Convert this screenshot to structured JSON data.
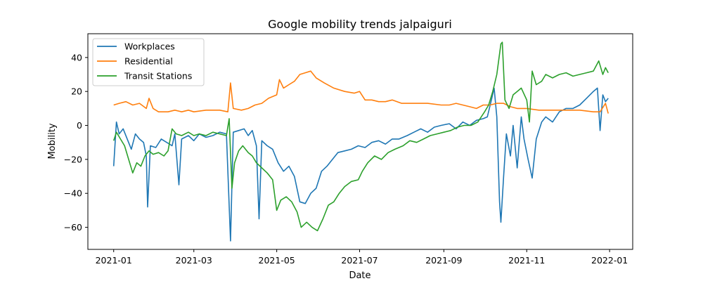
{
  "chart_data": {
    "type": "line",
    "title": "Google mobility trends jalpaiguri",
    "xlabel": "Date",
    "ylabel": "Mobility",
    "xlim": [
      "2020-12-13",
      "2022-01-18"
    ],
    "ylim": [
      -73,
      54
    ],
    "x_ticks": [
      "2021-01",
      "2021-03",
      "2021-05",
      "2021-07",
      "2021-09",
      "2021-11",
      "2022-01"
    ],
    "y_ticks": [
      -60,
      -40,
      -20,
      0,
      20,
      40
    ],
    "grid": false,
    "legend_position": "upper-left",
    "series": [
      {
        "name": "Workplaces",
        "color": "#1f77b4",
        "points": [
          [
            "2021-01-01",
            -24
          ],
          [
            "2021-01-03",
            2
          ],
          [
            "2021-01-05",
            -5
          ],
          [
            "2021-01-08",
            -2
          ],
          [
            "2021-01-11",
            -8
          ],
          [
            "2021-01-14",
            -14
          ],
          [
            "2021-01-17",
            -5
          ],
          [
            "2021-01-20",
            -8
          ],
          [
            "2021-01-23",
            -10
          ],
          [
            "2021-01-25",
            -18
          ],
          [
            "2021-01-26",
            -48
          ],
          [
            "2021-01-28",
            -12
          ],
          [
            "2021-02-01",
            -13
          ],
          [
            "2021-02-05",
            -8
          ],
          [
            "2021-02-09",
            -10
          ],
          [
            "2021-02-13",
            -12
          ],
          [
            "2021-02-15",
            -5
          ],
          [
            "2021-02-18",
            -35
          ],
          [
            "2021-02-20",
            -8
          ],
          [
            "2021-02-25",
            -6
          ],
          [
            "2021-03-01",
            -9
          ],
          [
            "2021-03-05",
            -5
          ],
          [
            "2021-03-10",
            -7
          ],
          [
            "2021-03-15",
            -6
          ],
          [
            "2021-03-20",
            -4
          ],
          [
            "2021-03-25",
            -5
          ],
          [
            "2021-03-28",
            -68
          ],
          [
            "2021-03-30",
            -4
          ],
          [
            "2021-04-03",
            -3
          ],
          [
            "2021-04-07",
            -2
          ],
          [
            "2021-04-10",
            -6
          ],
          [
            "2021-04-13",
            -3
          ],
          [
            "2021-04-16",
            -12
          ],
          [
            "2021-04-18",
            -55
          ],
          [
            "2021-04-20",
            -9
          ],
          [
            "2021-04-24",
            -12
          ],
          [
            "2021-04-28",
            -14
          ],
          [
            "2021-05-02",
            -22
          ],
          [
            "2021-05-06",
            -27
          ],
          [
            "2021-05-10",
            -24
          ],
          [
            "2021-05-14",
            -30
          ],
          [
            "2021-05-18",
            -45
          ],
          [
            "2021-05-22",
            -46
          ],
          [
            "2021-05-26",
            -40
          ],
          [
            "2021-05-30",
            -37
          ],
          [
            "2021-06-03",
            -27
          ],
          [
            "2021-06-07",
            -24
          ],
          [
            "2021-06-11",
            -20
          ],
          [
            "2021-06-15",
            -16
          ],
          [
            "2021-06-20",
            -15
          ],
          [
            "2021-06-25",
            -14
          ],
          [
            "2021-06-30",
            -12
          ],
          [
            "2021-07-05",
            -13
          ],
          [
            "2021-07-10",
            -10
          ],
          [
            "2021-07-15",
            -9
          ],
          [
            "2021-07-20",
            -11
          ],
          [
            "2021-07-25",
            -8
          ],
          [
            "2021-07-30",
            -8
          ],
          [
            "2021-08-05",
            -6
          ],
          [
            "2021-08-10",
            -4
          ],
          [
            "2021-08-15",
            -2
          ],
          [
            "2021-08-20",
            -4
          ],
          [
            "2021-08-25",
            -1
          ],
          [
            "2021-08-30",
            0
          ],
          [
            "2021-09-05",
            1
          ],
          [
            "2021-09-10",
            -2
          ],
          [
            "2021-09-15",
            2
          ],
          [
            "2021-09-20",
            0
          ],
          [
            "2021-09-25",
            3
          ],
          [
            "2021-09-30",
            4
          ],
          [
            "2021-10-03",
            5
          ],
          [
            "2021-10-06",
            15
          ],
          [
            "2021-10-08",
            22
          ],
          [
            "2021-10-10",
            5
          ],
          [
            "2021-10-12",
            -45
          ],
          [
            "2021-10-13",
            -57
          ],
          [
            "2021-10-15",
            -30
          ],
          [
            "2021-10-17",
            -5
          ],
          [
            "2021-10-20",
            -18
          ],
          [
            "2021-10-22",
            0
          ],
          [
            "2021-10-25",
            -25
          ],
          [
            "2021-10-28",
            5
          ],
          [
            "2021-10-30",
            -8
          ],
          [
            "2021-11-02",
            -20
          ],
          [
            "2021-11-05",
            -31
          ],
          [
            "2021-11-08",
            -8
          ],
          [
            "2021-11-12",
            2
          ],
          [
            "2021-11-15",
            5
          ],
          [
            "2021-11-20",
            2
          ],
          [
            "2021-11-25",
            8
          ],
          [
            "2021-11-30",
            10
          ],
          [
            "2021-12-05",
            10
          ],
          [
            "2021-12-10",
            12
          ],
          [
            "2021-12-15",
            16
          ],
          [
            "2021-12-20",
            20
          ],
          [
            "2021-12-23",
            22
          ],
          [
            "2021-12-25",
            -3
          ],
          [
            "2021-12-27",
            18
          ],
          [
            "2021-12-29",
            14
          ],
          [
            "2021-12-31",
            16
          ]
        ]
      },
      {
        "name": "Residential",
        "color": "#ff7f0e",
        "points": [
          [
            "2021-01-01",
            12
          ],
          [
            "2021-01-05",
            13
          ],
          [
            "2021-01-10",
            14
          ],
          [
            "2021-01-15",
            12
          ],
          [
            "2021-01-20",
            13
          ],
          [
            "2021-01-25",
            10
          ],
          [
            "2021-01-27",
            16
          ],
          [
            "2021-01-30",
            10
          ],
          [
            "2021-02-03",
            8
          ],
          [
            "2021-02-10",
            8
          ],
          [
            "2021-02-15",
            9
          ],
          [
            "2021-02-20",
            8
          ],
          [
            "2021-02-25",
            9
          ],
          [
            "2021-03-01",
            8
          ],
          [
            "2021-03-10",
            9
          ],
          [
            "2021-03-20",
            9
          ],
          [
            "2021-03-26",
            8
          ],
          [
            "2021-03-28",
            25
          ],
          [
            "2021-03-30",
            10
          ],
          [
            "2021-04-05",
            9
          ],
          [
            "2021-04-10",
            10
          ],
          [
            "2021-04-15",
            12
          ],
          [
            "2021-04-20",
            13
          ],
          [
            "2021-04-25",
            16
          ],
          [
            "2021-05-01",
            18
          ],
          [
            "2021-05-03",
            27
          ],
          [
            "2021-05-06",
            22
          ],
          [
            "2021-05-10",
            24
          ],
          [
            "2021-05-14",
            26
          ],
          [
            "2021-05-18",
            30
          ],
          [
            "2021-05-22",
            31
          ],
          [
            "2021-05-26",
            32
          ],
          [
            "2021-05-30",
            28
          ],
          [
            "2021-06-05",
            25
          ],
          [
            "2021-06-12",
            22
          ],
          [
            "2021-06-20",
            20
          ],
          [
            "2021-06-27",
            19
          ],
          [
            "2021-07-01",
            20
          ],
          [
            "2021-07-05",
            15
          ],
          [
            "2021-07-10",
            15
          ],
          [
            "2021-07-15",
            14
          ],
          [
            "2021-07-20",
            14
          ],
          [
            "2021-07-25",
            15
          ],
          [
            "2021-08-01",
            13
          ],
          [
            "2021-08-10",
            13
          ],
          [
            "2021-08-20",
            13
          ],
          [
            "2021-08-30",
            12
          ],
          [
            "2021-09-05",
            12
          ],
          [
            "2021-09-10",
            13
          ],
          [
            "2021-09-15",
            12
          ],
          [
            "2021-09-20",
            11
          ],
          [
            "2021-09-25",
            10
          ],
          [
            "2021-09-30",
            12
          ],
          [
            "2021-10-05",
            12
          ],
          [
            "2021-10-10",
            13
          ],
          [
            "2021-10-15",
            13
          ],
          [
            "2021-10-20",
            11
          ],
          [
            "2021-10-25",
            10
          ],
          [
            "2021-11-01",
            10
          ],
          [
            "2021-11-10",
            9
          ],
          [
            "2021-11-20",
            9
          ],
          [
            "2021-11-30",
            9
          ],
          [
            "2021-12-10",
            9
          ],
          [
            "2021-12-20",
            8
          ],
          [
            "2021-12-25",
            8
          ],
          [
            "2021-12-29",
            13
          ],
          [
            "2021-12-31",
            7
          ]
        ]
      },
      {
        "name": "Transit Stations",
        "color": "#2ca02c",
        "points": [
          [
            "2021-01-01",
            -9
          ],
          [
            "2021-01-03",
            -4
          ],
          [
            "2021-01-06",
            -8
          ],
          [
            "2021-01-09",
            -12
          ],
          [
            "2021-01-12",
            -20
          ],
          [
            "2021-01-15",
            -28
          ],
          [
            "2021-01-18",
            -22
          ],
          [
            "2021-01-21",
            -24
          ],
          [
            "2021-01-24",
            -18
          ],
          [
            "2021-01-27",
            -15
          ],
          [
            "2021-01-30",
            -17
          ],
          [
            "2021-02-03",
            -16
          ],
          [
            "2021-02-07",
            -18
          ],
          [
            "2021-02-10",
            -15
          ],
          [
            "2021-02-13",
            -2
          ],
          [
            "2021-02-16",
            -5
          ],
          [
            "2021-02-20",
            -6
          ],
          [
            "2021-02-25",
            -4
          ],
          [
            "2021-03-01",
            -6
          ],
          [
            "2021-03-05",
            -5
          ],
          [
            "2021-03-10",
            -6
          ],
          [
            "2021-03-15",
            -4
          ],
          [
            "2021-03-20",
            -5
          ],
          [
            "2021-03-25",
            -6
          ],
          [
            "2021-03-27",
            4
          ],
          [
            "2021-03-29",
            -37
          ],
          [
            "2021-03-31",
            -22
          ],
          [
            "2021-04-03",
            -15
          ],
          [
            "2021-04-06",
            -12
          ],
          [
            "2021-04-10",
            -16
          ],
          [
            "2021-04-13",
            -18
          ],
          [
            "2021-04-16",
            -22
          ],
          [
            "2021-04-20",
            -25
          ],
          [
            "2021-04-24",
            -28
          ],
          [
            "2021-04-28",
            -32
          ],
          [
            "2021-05-01",
            -50
          ],
          [
            "2021-05-04",
            -44
          ],
          [
            "2021-05-08",
            -42
          ],
          [
            "2021-05-12",
            -45
          ],
          [
            "2021-05-16",
            -51
          ],
          [
            "2021-05-19",
            -60
          ],
          [
            "2021-05-23",
            -57
          ],
          [
            "2021-05-27",
            -60
          ],
          [
            "2021-05-31",
            -62
          ],
          [
            "2021-06-04",
            -55
          ],
          [
            "2021-06-08",
            -47
          ],
          [
            "2021-06-12",
            -45
          ],
          [
            "2021-06-16",
            -40
          ],
          [
            "2021-06-20",
            -36
          ],
          [
            "2021-06-25",
            -33
          ],
          [
            "2021-06-30",
            -32
          ],
          [
            "2021-07-03",
            -27
          ],
          [
            "2021-07-07",
            -22
          ],
          [
            "2021-07-12",
            -18
          ],
          [
            "2021-07-17",
            -20
          ],
          [
            "2021-07-22",
            -16
          ],
          [
            "2021-07-27",
            -14
          ],
          [
            "2021-08-02",
            -12
          ],
          [
            "2021-08-07",
            -9
          ],
          [
            "2021-08-12",
            -10
          ],
          [
            "2021-08-17",
            -8
          ],
          [
            "2021-08-22",
            -6
          ],
          [
            "2021-08-27",
            -5
          ],
          [
            "2021-09-01",
            -4
          ],
          [
            "2021-09-06",
            -3
          ],
          [
            "2021-09-11",
            -1
          ],
          [
            "2021-09-16",
            0
          ],
          [
            "2021-09-21",
            0
          ],
          [
            "2021-09-26",
            2
          ],
          [
            "2021-10-01",
            8
          ],
          [
            "2021-10-04",
            12
          ],
          [
            "2021-10-07",
            20
          ],
          [
            "2021-10-10",
            30
          ],
          [
            "2021-10-13",
            48
          ],
          [
            "2021-10-14",
            49
          ],
          [
            "2021-10-16",
            15
          ],
          [
            "2021-10-19",
            10
          ],
          [
            "2021-10-22",
            18
          ],
          [
            "2021-10-25",
            20
          ],
          [
            "2021-10-28",
            22
          ],
          [
            "2021-11-01",
            15
          ],
          [
            "2021-11-03",
            2
          ],
          [
            "2021-11-05",
            32
          ],
          [
            "2021-11-08",
            24
          ],
          [
            "2021-11-12",
            26
          ],
          [
            "2021-11-15",
            30
          ],
          [
            "2021-11-20",
            28
          ],
          [
            "2021-11-25",
            30
          ],
          [
            "2021-11-30",
            31
          ],
          [
            "2021-12-05",
            29
          ],
          [
            "2021-12-10",
            30
          ],
          [
            "2021-12-15",
            31
          ],
          [
            "2021-12-20",
            32
          ],
          [
            "2021-12-24",
            38
          ],
          [
            "2021-12-27",
            30
          ],
          [
            "2021-12-29",
            34
          ],
          [
            "2021-12-31",
            31
          ]
        ]
      }
    ]
  }
}
